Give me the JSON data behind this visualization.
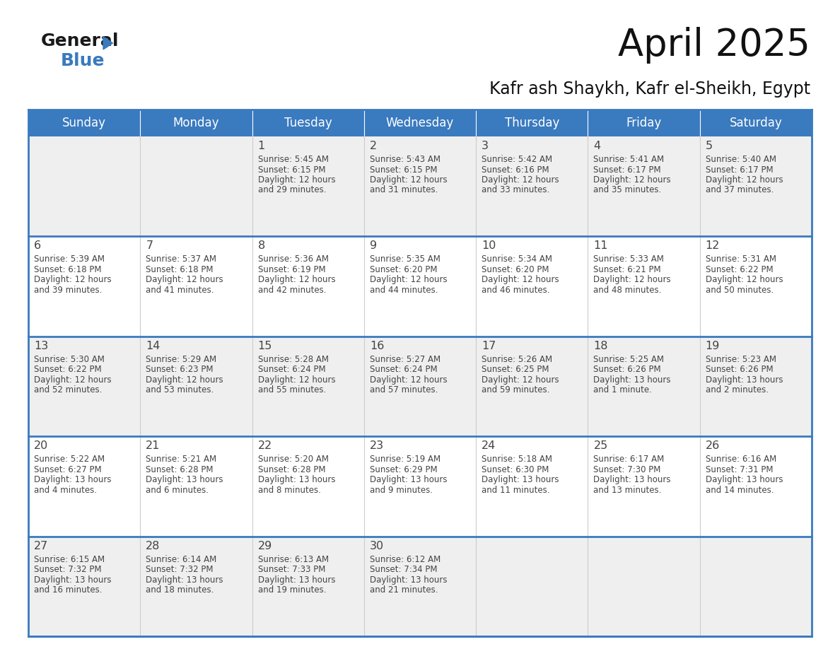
{
  "title": "April 2025",
  "subtitle": "Kafr ash Shaykh, Kafr el-Sheikh, Egypt",
  "header_color": "#3a7abf",
  "header_text_color": "#ffffff",
  "row0_bg": "#efefef",
  "row1_bg": "#ffffff",
  "border_color": "#3a7abf",
  "day_names": [
    "Sunday",
    "Monday",
    "Tuesday",
    "Wednesday",
    "Thursday",
    "Friday",
    "Saturday"
  ],
  "text_color": "#444444",
  "logo_general_color": "#1a1a1a",
  "logo_blue_color": "#3a7abf",
  "logo_triangle_color": "#3a7abf",
  "days": [
    {
      "day": 1,
      "col": 2,
      "row": 0,
      "sunrise": "5:45 AM",
      "sunset": "6:15 PM",
      "daylight": "12 hours and 29 minutes."
    },
    {
      "day": 2,
      "col": 3,
      "row": 0,
      "sunrise": "5:43 AM",
      "sunset": "6:15 PM",
      "daylight": "12 hours and 31 minutes."
    },
    {
      "day": 3,
      "col": 4,
      "row": 0,
      "sunrise": "5:42 AM",
      "sunset": "6:16 PM",
      "daylight": "12 hours and 33 minutes."
    },
    {
      "day": 4,
      "col": 5,
      "row": 0,
      "sunrise": "5:41 AM",
      "sunset": "6:17 PM",
      "daylight": "12 hours and 35 minutes."
    },
    {
      "day": 5,
      "col": 6,
      "row": 0,
      "sunrise": "5:40 AM",
      "sunset": "6:17 PM",
      "daylight": "12 hours and 37 minutes."
    },
    {
      "day": 6,
      "col": 0,
      "row": 1,
      "sunrise": "5:39 AM",
      "sunset": "6:18 PM",
      "daylight": "12 hours and 39 minutes."
    },
    {
      "day": 7,
      "col": 1,
      "row": 1,
      "sunrise": "5:37 AM",
      "sunset": "6:18 PM",
      "daylight": "12 hours and 41 minutes."
    },
    {
      "day": 8,
      "col": 2,
      "row": 1,
      "sunrise": "5:36 AM",
      "sunset": "6:19 PM",
      "daylight": "12 hours and 42 minutes."
    },
    {
      "day": 9,
      "col": 3,
      "row": 1,
      "sunrise": "5:35 AM",
      "sunset": "6:20 PM",
      "daylight": "12 hours and 44 minutes."
    },
    {
      "day": 10,
      "col": 4,
      "row": 1,
      "sunrise": "5:34 AM",
      "sunset": "6:20 PM",
      "daylight": "12 hours and 46 minutes."
    },
    {
      "day": 11,
      "col": 5,
      "row": 1,
      "sunrise": "5:33 AM",
      "sunset": "6:21 PM",
      "daylight": "12 hours and 48 minutes."
    },
    {
      "day": 12,
      "col": 6,
      "row": 1,
      "sunrise": "5:31 AM",
      "sunset": "6:22 PM",
      "daylight": "12 hours and 50 minutes."
    },
    {
      "day": 13,
      "col": 0,
      "row": 2,
      "sunrise": "5:30 AM",
      "sunset": "6:22 PM",
      "daylight": "12 hours and 52 minutes."
    },
    {
      "day": 14,
      "col": 1,
      "row": 2,
      "sunrise": "5:29 AM",
      "sunset": "6:23 PM",
      "daylight": "12 hours and 53 minutes."
    },
    {
      "day": 15,
      "col": 2,
      "row": 2,
      "sunrise": "5:28 AM",
      "sunset": "6:24 PM",
      "daylight": "12 hours and 55 minutes."
    },
    {
      "day": 16,
      "col": 3,
      "row": 2,
      "sunrise": "5:27 AM",
      "sunset": "6:24 PM",
      "daylight": "12 hours and 57 minutes."
    },
    {
      "day": 17,
      "col": 4,
      "row": 2,
      "sunrise": "5:26 AM",
      "sunset": "6:25 PM",
      "daylight": "12 hours and 59 minutes."
    },
    {
      "day": 18,
      "col": 5,
      "row": 2,
      "sunrise": "5:25 AM",
      "sunset": "6:26 PM",
      "daylight": "13 hours and 1 minute."
    },
    {
      "day": 19,
      "col": 6,
      "row": 2,
      "sunrise": "5:23 AM",
      "sunset": "6:26 PM",
      "daylight": "13 hours and 2 minutes."
    },
    {
      "day": 20,
      "col": 0,
      "row": 3,
      "sunrise": "5:22 AM",
      "sunset": "6:27 PM",
      "daylight": "13 hours and 4 minutes."
    },
    {
      "day": 21,
      "col": 1,
      "row": 3,
      "sunrise": "5:21 AM",
      "sunset": "6:28 PM",
      "daylight": "13 hours and 6 minutes."
    },
    {
      "day": 22,
      "col": 2,
      "row": 3,
      "sunrise": "5:20 AM",
      "sunset": "6:28 PM",
      "daylight": "13 hours and 8 minutes."
    },
    {
      "day": 23,
      "col": 3,
      "row": 3,
      "sunrise": "5:19 AM",
      "sunset": "6:29 PM",
      "daylight": "13 hours and 9 minutes."
    },
    {
      "day": 24,
      "col": 4,
      "row": 3,
      "sunrise": "5:18 AM",
      "sunset": "6:30 PM",
      "daylight": "13 hours and 11 minutes."
    },
    {
      "day": 25,
      "col": 5,
      "row": 3,
      "sunrise": "6:17 AM",
      "sunset": "7:30 PM",
      "daylight": "13 hours and 13 minutes."
    },
    {
      "day": 26,
      "col": 6,
      "row": 3,
      "sunrise": "6:16 AM",
      "sunset": "7:31 PM",
      "daylight": "13 hours and 14 minutes."
    },
    {
      "day": 27,
      "col": 0,
      "row": 4,
      "sunrise": "6:15 AM",
      "sunset": "7:32 PM",
      "daylight": "13 hours and 16 minutes."
    },
    {
      "day": 28,
      "col": 1,
      "row": 4,
      "sunrise": "6:14 AM",
      "sunset": "7:32 PM",
      "daylight": "13 hours and 18 minutes."
    },
    {
      "day": 29,
      "col": 2,
      "row": 4,
      "sunrise": "6:13 AM",
      "sunset": "7:33 PM",
      "daylight": "13 hours and 19 minutes."
    },
    {
      "day": 30,
      "col": 3,
      "row": 4,
      "sunrise": "6:12 AM",
      "sunset": "7:34 PM",
      "daylight": "13 hours and 21 minutes."
    }
  ]
}
